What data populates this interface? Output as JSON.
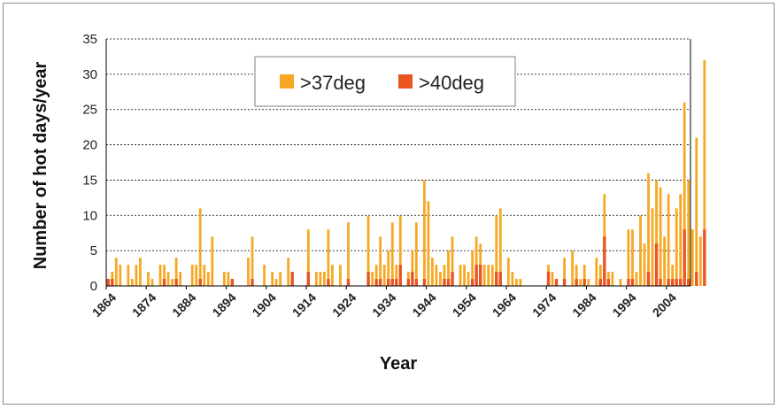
{
  "chart_data": {
    "type": "bar",
    "title": "",
    "xlabel": "Year",
    "ylabel": "Number of hot days/year",
    "ylim": [
      0,
      35
    ],
    "yticks": [
      0,
      5,
      10,
      15,
      20,
      25,
      30,
      35
    ],
    "xtick_labels": [
      "1864",
      "1874",
      "1884",
      "1894",
      "1904",
      "1914",
      "1924",
      "1934",
      "1944",
      "1954",
      "1964",
      "1974",
      "1984",
      "1994",
      "2004"
    ],
    "x_start": 1864,
    "x_end": 2009,
    "grid": "horizontal dashed",
    "legend_position": "top-center",
    "series": [
      {
        "name": ">37deg",
        "color": "#F7A823",
        "values": [
          1,
          2,
          4,
          3,
          0,
          3,
          1,
          3,
          4,
          0,
          2,
          1,
          0,
          3,
          3,
          2,
          1,
          4,
          2,
          0,
          0,
          3,
          3,
          11,
          3,
          2,
          7,
          0,
          0,
          2,
          2,
          1,
          0,
          0,
          0,
          4,
          7,
          0,
          0,
          3,
          0,
          2,
          1,
          2,
          0,
          4,
          0,
          0,
          0,
          0,
          8,
          0,
          2,
          2,
          2,
          8,
          3,
          0,
          3,
          0,
          9,
          0,
          0,
          0,
          0,
          10,
          2,
          3,
          7,
          3,
          5,
          9,
          3,
          10,
          0,
          2,
          5,
          9,
          0,
          15,
          12,
          4,
          3,
          2,
          3,
          5,
          7,
          0,
          3,
          3,
          2,
          5,
          7,
          6,
          3,
          3,
          3,
          10,
          11,
          0,
          4,
          2,
          1,
          1,
          0,
          0,
          0,
          0,
          0,
          0,
          3,
          2,
          1,
          0,
          4,
          0,
          5,
          3,
          1,
          3,
          1,
          0,
          4,
          3,
          13,
          2,
          2,
          0,
          1,
          0,
          8,
          8,
          2,
          10,
          6,
          16,
          11,
          15,
          14,
          7,
          13,
          3,
          11,
          13,
          26,
          15,
          8,
          21,
          7,
          32
        ]
      },
      {
        "name": ">40deg",
        "color": "#EB5423",
        "values": [
          1,
          1,
          0,
          0,
          0,
          0,
          0,
          0,
          0,
          0,
          0,
          0,
          0,
          0,
          1,
          0,
          0,
          1,
          0,
          0,
          0,
          0,
          0,
          1,
          0,
          0,
          0,
          0,
          0,
          0,
          0,
          1,
          0,
          0,
          0,
          0,
          1,
          0,
          0,
          0,
          0,
          0,
          0,
          0,
          0,
          0,
          2,
          0,
          0,
          0,
          2,
          0,
          0,
          0,
          0,
          1,
          0,
          0,
          0,
          0,
          1,
          0,
          0,
          0,
          0,
          2,
          0,
          1,
          1,
          0,
          1,
          1,
          1,
          3,
          0,
          1,
          2,
          1,
          0,
          1,
          0,
          0,
          0,
          0,
          1,
          1,
          2,
          0,
          0,
          0,
          0,
          1,
          3,
          3,
          0,
          0,
          0,
          2,
          2,
          0,
          0,
          0,
          0,
          0,
          0,
          0,
          0,
          0,
          0,
          0,
          2,
          0,
          1,
          0,
          1,
          0,
          0,
          1,
          0,
          1,
          0,
          0,
          0,
          1,
          7,
          1,
          0,
          0,
          0,
          0,
          1,
          1,
          0,
          0,
          0,
          2,
          0,
          6,
          1,
          0,
          1,
          1,
          1,
          1,
          8,
          1,
          0,
          2,
          0,
          8
        ]
      }
    ]
  }
}
